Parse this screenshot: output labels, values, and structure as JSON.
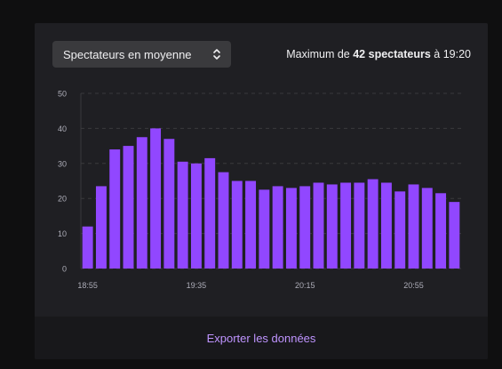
{
  "metric_selector": {
    "selected": "Spectateurs en moyenne"
  },
  "summary": {
    "prefix": "Maximum de",
    "value": "42 spectateurs",
    "suffix": "à 19:20"
  },
  "export": {
    "label": "Exporter les données"
  },
  "colors": {
    "bar": "#9147ff",
    "grid": "#3a3a3d",
    "axis_text": "#adadb8",
    "card": "#1f1f23",
    "link": "#bf94ff"
  },
  "chart_data": {
    "type": "bar",
    "ylim": [
      0,
      50
    ],
    "yticks": [
      0,
      10,
      20,
      30,
      40,
      50
    ],
    "xtick_labels": [
      "18:55",
      "19:35",
      "20:15",
      "20:55"
    ],
    "xtick_indices": [
      0,
      8,
      16,
      24
    ],
    "values": [
      12,
      23.5,
      34,
      35,
      37.5,
      40,
      37,
      30.5,
      30,
      31.5,
      27.5,
      25,
      25,
      22.5,
      23.5,
      23,
      23.5,
      24.5,
      24,
      24.5,
      24.5,
      25.5,
      24.5,
      22,
      24,
      23,
      21.5,
      19
    ],
    "grid": true,
    "legend": "none"
  }
}
